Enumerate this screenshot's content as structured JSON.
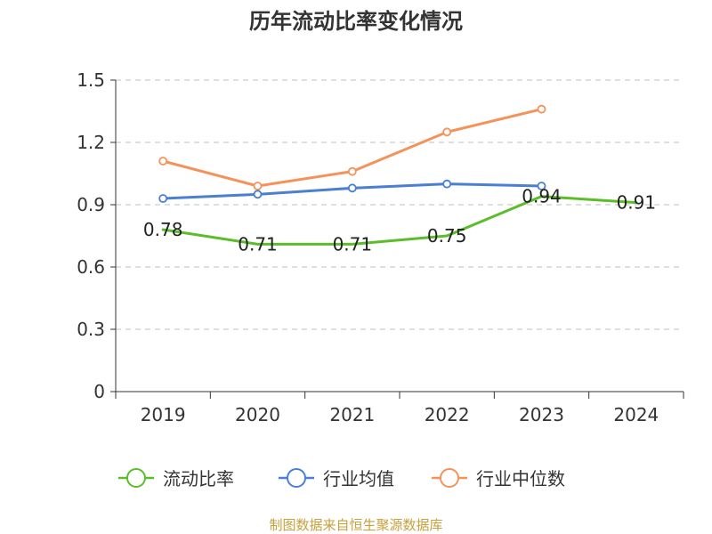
{
  "chart_data": {
    "type": "line",
    "title": "历年流动比率变化情况",
    "categories": [
      "2019",
      "2020",
      "2021",
      "2022",
      "2023",
      "2024"
    ],
    "ylim": [
      0,
      1.5
    ],
    "yticks": [
      "0",
      "0.3",
      "0.6",
      "0.9",
      "1.2",
      "1.5"
    ],
    "grid": true,
    "legend_position": "bottom",
    "series": [
      {
        "name": "流动比率",
        "color": "#5cbd2a",
        "values": [
          0.78,
          0.71,
          0.71,
          0.75,
          0.94,
          0.91
        ],
        "labels": [
          "0.78",
          "0.71",
          "0.71",
          "0.75",
          "0.94",
          "0.91"
        ]
      },
      {
        "name": "行业均值",
        "color": "#4a7fd4",
        "values": [
          0.93,
          0.95,
          0.98,
          1.0,
          0.99,
          null
        ]
      },
      {
        "name": "行业中位数",
        "color": "#f5925a",
        "values": [
          1.11,
          0.99,
          1.06,
          1.25,
          1.36,
          null
        ]
      }
    ]
  },
  "source_text": "制图数据来自恒生聚源数据库"
}
